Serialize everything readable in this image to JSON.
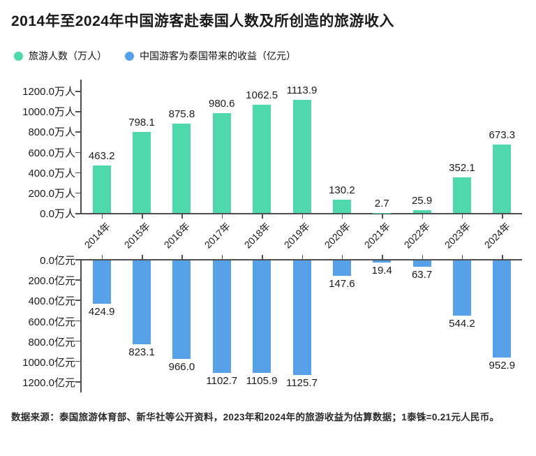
{
  "page": {
    "title": "2014年至2024年中国游客赴泰国人数及所创造的旅游收入",
    "footer": "数据来源：泰国旅游体育部、新华社等公开资料，2023年和2024年的旅游收益为估算数据；1泰铢=0.21元人民币。"
  },
  "legend": {
    "items": [
      {
        "label": "旅游人数（万人）",
        "color": "#4fd8ab"
      },
      {
        "label": "中国游客为泰国带来的收益（亿元）",
        "color": "#57a1e8"
      }
    ]
  },
  "colors": {
    "visitors_bar": "#4fd8ab",
    "revenue_bar": "#57a1e8",
    "axis": "#4f4f4f",
    "text": "#1a1a1a"
  },
  "chart_data": {
    "type": "bar",
    "title": "2014年至2024年中国游客赴泰国人数及所创造的旅游收入",
    "categories": [
      "2014年",
      "2015年",
      "2016年",
      "2017年",
      "2018年",
      "2019年",
      "2020年",
      "2021年",
      "2022年",
      "2023年",
      "2024年"
    ],
    "series": [
      {
        "name": "旅游人数（万人）",
        "unit": "万人",
        "direction": "up",
        "color": "#4fd8ab",
        "ylim": [
          0,
          1200
        ],
        "values": [
          463.2,
          798.1,
          875.8,
          980.6,
          1062.5,
          1113.9,
          130.2,
          2.7,
          25.9,
          352.1,
          673.3
        ],
        "value_labels": [
          "463.2",
          "798.1",
          "875.8",
          "980.6",
          "1062.5",
          "1113.9",
          "130.2",
          "2.7",
          "25.9",
          "352.1",
          "673.3"
        ],
        "axis_tick_labels": [
          "1200.0万人",
          "1000.0万人",
          "800.0万人",
          "600.0万人",
          "400.0万人",
          "200.0万人",
          "0.0万人"
        ]
      },
      {
        "name": "中国游客为泰国带来的收益（亿元）",
        "unit": "亿元",
        "direction": "down",
        "color": "#57a1e8",
        "ylim": [
          0,
          1200
        ],
        "values": [
          424.9,
          823.1,
          966.0,
          1102.7,
          1105.9,
          1125.7,
          147.6,
          19.4,
          63.7,
          544.2,
          952.9
        ],
        "value_labels": [
          "424.9",
          "823.1",
          "966.0",
          "1102.7",
          "1105.9",
          "1125.7",
          "147.6",
          "19.4",
          "63.7",
          "544.2",
          "952.9"
        ],
        "axis_tick_labels": [
          "0.0亿元",
          "200.0亿元",
          "400.0亿元",
          "600.0亿元",
          "800.0亿元",
          "1000.0亿元",
          "1200.0亿元"
        ]
      }
    ],
    "legend_position": "top-left",
    "grid": false
  }
}
